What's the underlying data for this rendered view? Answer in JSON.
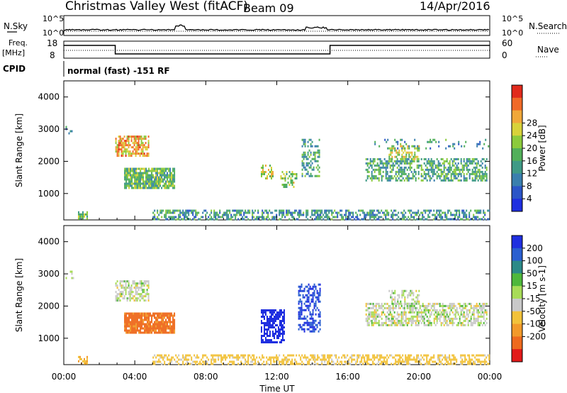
{
  "header": {
    "title": "Christmas Valley West (fitACF)",
    "beam": "Beam 09",
    "date": "14/Apr/2016"
  },
  "strip_labels": {
    "nsky": "N.Sky",
    "nsearch": "N.Search",
    "freq_line1": "Freq.",
    "freq_line2": "[MHz]",
    "nave": "Nave",
    "cpid": "CPID",
    "cpid_value": "normal (fast) -151 RF",
    "noise_ticks_left": [
      "10^5",
      "10^0"
    ],
    "noise_ticks_right": [
      "10^5",
      "10^0"
    ],
    "freq_ticks": [
      "18",
      "8"
    ],
    "nave_ticks": [
      "60",
      "0"
    ]
  },
  "chart_data": [
    {
      "type": "heatmap",
      "name": "power",
      "ylabel": "Slant Range [km]",
      "xlabel": "",
      "x_ticks": [
        "00:00",
        "04:00",
        "08:00",
        "12:00",
        "16:00",
        "20:00",
        "00:00"
      ],
      "y_ticks": [
        1000,
        2000,
        3000,
        4000
      ],
      "ylim": [
        180,
        4500
      ],
      "xlim_hours": [
        0,
        24
      ],
      "colorbar": {
        "label": "Power [dB]",
        "ticks": [
          "4",
          "8",
          "12",
          "16",
          "20",
          "24",
          "28"
        ],
        "colors": [
          "#1f2fe0",
          "#2b55c8",
          "#3a7fae",
          "#3f9a86",
          "#52b05a",
          "#8ccb3c",
          "#d8d23a",
          "#f0a83a",
          "#f06a28",
          "#e12a1c"
        ]
      },
      "echo_regions": [
        {
          "t0": 0.1,
          "t1": 0.6,
          "r0": 2900,
          "r1": 3100,
          "v": 8,
          "d": 0.3
        },
        {
          "t0": 0.8,
          "t1": 1.3,
          "r0": 250,
          "r1": 450,
          "v": 14,
          "d": 0.6
        },
        {
          "t0": 2.9,
          "t1": 4.8,
          "r0": 2200,
          "r1": 2800,
          "v": 22,
          "d": 0.75
        },
        {
          "t0": 3.4,
          "t1": 6.2,
          "r0": 1150,
          "r1": 1800,
          "v": 14,
          "d": 0.85
        },
        {
          "t0": 11.1,
          "t1": 11.8,
          "r0": 1500,
          "r1": 1900,
          "v": 18,
          "d": 0.55
        },
        {
          "t0": 12.2,
          "t1": 13.1,
          "r0": 1200,
          "r1": 1700,
          "v": 16,
          "d": 0.5
        },
        {
          "t0": 13.4,
          "t1": 14.4,
          "r0": 1500,
          "r1": 2700,
          "v": 12,
          "d": 0.45
        },
        {
          "t0": 17.0,
          "t1": 23.8,
          "r0": 1400,
          "r1": 2100,
          "v": 12,
          "d": 0.55
        },
        {
          "t0": 18.3,
          "t1": 20.0,
          "r0": 2100,
          "r1": 2500,
          "v": 18,
          "d": 0.5
        },
        {
          "t0": 17.5,
          "t1": 23.9,
          "r0": 2400,
          "r1": 2700,
          "v": 10,
          "d": 0.15
        },
        {
          "t0": 5.0,
          "t1": 24.0,
          "r0": 190,
          "r1": 500,
          "v": 10,
          "d": 0.55
        }
      ]
    },
    {
      "type": "heatmap",
      "name": "velocity",
      "ylabel": "Slant Range [km]",
      "xlabel": "Time UT",
      "x_ticks": [
        "00:00",
        "04:00",
        "08:00",
        "12:00",
        "16:00",
        "20:00",
        "00:00"
      ],
      "y_ticks": [
        1000,
        2000,
        3000,
        4000
      ],
      "ylim": [
        180,
        4500
      ],
      "xlim_hours": [
        0,
        24
      ],
      "colorbar": {
        "label": "Velocity [m s-1]",
        "ticks": [
          "200",
          "100",
          "50",
          "15",
          "-15",
          "-50",
          "-100",
          "-200"
        ],
        "colors": [
          "#1f2fe0",
          "#2a5fd0",
          "#2c8a88",
          "#4fb83c",
          "#a8dc58",
          "#c9c9c9",
          "#f2c23a",
          "#f29a2a",
          "#ee6a1e",
          "#e21a1a"
        ]
      },
      "echo_regions": [
        {
          "t0": 0.1,
          "t1": 0.6,
          "r0": 2900,
          "r1": 3100,
          "v": 0,
          "d": 0.3
        },
        {
          "t0": 0.8,
          "t1": 1.3,
          "r0": 250,
          "r1": 450,
          "v": -40,
          "d": 0.6
        },
        {
          "t0": 2.9,
          "t1": 4.8,
          "r0": 2200,
          "r1": 2800,
          "v": 0,
          "d": 0.6
        },
        {
          "t0": 3.4,
          "t1": 6.2,
          "r0": 1150,
          "r1": 1800,
          "v": -90,
          "d": 0.9
        },
        {
          "t0": 11.1,
          "t1": 12.4,
          "r0": 900,
          "r1": 1900,
          "v": 180,
          "d": 0.65
        },
        {
          "t0": 13.2,
          "t1": 14.4,
          "r0": 1200,
          "r1": 2700,
          "v": 150,
          "d": 0.55
        },
        {
          "t0": 17.0,
          "t1": 23.8,
          "r0": 1400,
          "r1": 2100,
          "v": 0,
          "d": 0.6
        },
        {
          "t0": 18.3,
          "t1": 20.0,
          "r0": 2100,
          "r1": 2500,
          "v": 0,
          "d": 0.5
        },
        {
          "t0": 5.0,
          "t1": 24.0,
          "r0": 190,
          "r1": 500,
          "v": -30,
          "d": 0.5
        }
      ]
    }
  ],
  "freq_series": {
    "ylim": [
      8,
      18
    ],
    "times": [
      0,
      2.9,
      2.9,
      15.0,
      15.0,
      24
    ],
    "values": [
      15.5,
      15.5,
      10.5,
      10.5,
      15.5,
      15.5
    ]
  }
}
